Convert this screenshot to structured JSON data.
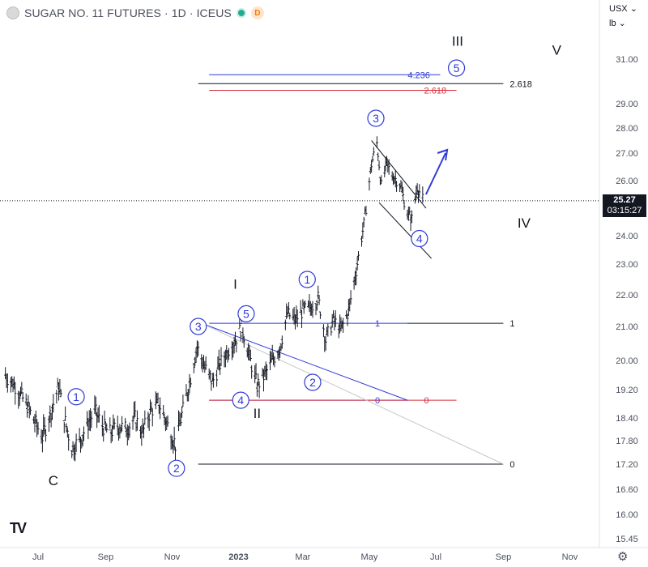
{
  "header": {
    "title": "SUGAR NO. 11 FUTURES · 1D · ICEUS",
    "badge": "D",
    "currency": "USX",
    "unit": "lb"
  },
  "last_price": {
    "value": "25.27",
    "countdown": "03:15:27"
  },
  "chart_data": {
    "type": "line",
    "title": "SUGAR NO. 11 FUTURES · 1D · ICEUS",
    "xlabel": "",
    "ylabel": "",
    "x_ticks": [
      "Jul",
      "Sep",
      "Nov",
      "2023",
      "Mar",
      "May",
      "Jul",
      "Sep",
      "Nov"
    ],
    "y_ticks": [
      "31.00",
      "29.00",
      "28.00",
      "27.00",
      "26.00",
      "24.00",
      "23.00",
      "22.00",
      "21.00",
      "20.00",
      "19.20",
      "18.40",
      "17.80",
      "17.20",
      "16.60",
      "16.00",
      "15.45"
    ],
    "grid": false,
    "series": [
      {
        "points": [
          [
            "2022-06-01",
            19.6
          ],
          [
            "2022-06-10",
            19.3
          ],
          [
            "2022-06-20",
            18.8
          ],
          [
            "2022-06-28",
            18.3
          ],
          [
            "2022-07-05",
            17.9
          ],
          [
            "2022-07-12",
            18.5
          ],
          [
            "2022-07-20",
            19.3
          ],
          [
            "2022-07-25",
            18.4
          ],
          [
            "2022-08-01",
            17.6
          ],
          [
            "2022-08-08",
            17.8
          ],
          [
            "2022-08-15",
            18.2
          ],
          [
            "2022-08-22",
            18.6
          ],
          [
            "2022-08-29",
            18.2
          ],
          [
            "2022-09-05",
            18.0
          ],
          [
            "2022-09-12",
            18.2
          ],
          [
            "2022-09-20",
            18.1
          ],
          [
            "2022-09-28",
            18.4
          ],
          [
            "2022-10-05",
            18.0
          ],
          [
            "2022-10-12",
            18.6
          ],
          [
            "2022-10-20",
            18.8
          ],
          [
            "2022-10-28",
            18.2
          ],
          [
            "2022-11-04",
            17.7
          ],
          [
            "2022-11-10",
            18.5
          ],
          [
            "2022-11-17",
            19.4
          ],
          [
            "2022-11-24",
            20.4
          ],
          [
            "2022-12-01",
            19.8
          ],
          [
            "2022-12-08",
            19.4
          ],
          [
            "2022-12-15",
            19.9
          ],
          [
            "2022-12-22",
            20.3
          ],
          [
            "2022-12-29",
            20.6
          ],
          [
            "2023-01-04",
            21.0
          ],
          [
            "2023-01-11",
            20.1
          ],
          [
            "2023-01-18",
            19.3
          ],
          [
            "2023-01-25",
            19.6
          ],
          [
            "2023-02-01",
            20.0
          ],
          [
            "2023-02-08",
            20.4
          ],
          [
            "2023-02-15",
            21.4
          ],
          [
            "2023-02-22",
            21.2
          ],
          [
            "2023-03-01",
            21.5
          ],
          [
            "2023-03-08",
            21.6
          ],
          [
            "2023-03-15",
            21.9
          ],
          [
            "2023-03-22",
            20.6
          ],
          [
            "2023-03-29",
            21.2
          ],
          [
            "2023-04-05",
            20.9
          ],
          [
            "2023-04-12",
            21.5
          ],
          [
            "2023-04-19",
            22.8
          ],
          [
            "2023-04-26",
            24.4
          ],
          [
            "2023-05-03",
            26.6
          ],
          [
            "2023-05-08",
            27.4
          ],
          [
            "2023-05-12",
            25.8
          ],
          [
            "2023-05-17",
            26.6
          ],
          [
            "2023-05-22",
            26.2
          ],
          [
            "2023-05-29",
            25.9
          ],
          [
            "2023-06-05",
            24.8
          ],
          [
            "2023-06-09",
            24.6
          ],
          [
            "2023-06-14",
            25.8
          ],
          [
            "2023-06-19",
            25.3
          ]
        ]
      }
    ],
    "annotations": {
      "wave_labels_circled": [
        {
          "text": "1",
          "date": "2022-08-05",
          "price": 19.0
        },
        {
          "text": "2",
          "date": "2022-11-05",
          "price": 17.1
        },
        {
          "text": "3",
          "date": "2022-11-25",
          "price": 21.0
        },
        {
          "text": "4",
          "date": "2023-01-03",
          "price": 18.9
        },
        {
          "text": "5",
          "date": "2023-01-08",
          "price": 21.4
        },
        {
          "text": "1",
          "date": "2023-03-05",
          "price": 22.5
        },
        {
          "text": "2",
          "date": "2023-03-10",
          "price": 19.4
        },
        {
          "text": "3",
          "date": "2023-05-07",
          "price": 28.4
        },
        {
          "text": "4",
          "date": "2023-06-16",
          "price": 23.9
        },
        {
          "text": "5",
          "date": "2023-07-20",
          "price": 30.6
        }
      ],
      "wave_labels_plain": [
        {
          "text": "C",
          "date": "2022-07-15",
          "price": 16.7
        },
        {
          "text": "I",
          "date": "2022-12-29",
          "price": 22.2
        },
        {
          "text": "II",
          "date": "2023-01-18",
          "price": 18.4
        },
        {
          "text": "III",
          "date": "2023-07-21",
          "price": 31.6
        },
        {
          "text": "IV",
          "date": "2023-09-20",
          "price": 24.3
        },
        {
          "text": "V",
          "date": "2023-10-20",
          "price": 31.2
        }
      ],
      "fib_levels": [
        {
          "label": "4.236",
          "price": 30.3,
          "color": "#2f3ad6",
          "x_from": "2022-12-05",
          "x_to": "2023-07-05"
        },
        {
          "label": "2.618",
          "price": 29.9,
          "color": "#131722",
          "x_from": "2022-11-25",
          "x_to": "2023-09-01"
        },
        {
          "label": "2.618",
          "price": 29.6,
          "color": "#d62f3a",
          "x_from": "2022-12-05",
          "x_to": "2023-07-20"
        },
        {
          "label": "1",
          "price": 21.1,
          "color": "#2f3ad6",
          "x_from": "2022-12-05",
          "x_to": "2023-06-05"
        },
        {
          "label": "1",
          "price": 21.1,
          "color": "#131722",
          "x_from": "2023-06-05",
          "x_to": "2023-09-01"
        },
        {
          "label": "0",
          "price": 18.9,
          "color": "#2f3ad6",
          "x_from": "2022-12-05",
          "x_to": "2023-06-05"
        },
        {
          "label": "0",
          "price": 18.9,
          "color": "#d62f3a",
          "x_from": "2022-12-05",
          "x_to": "2023-07-20"
        },
        {
          "label": "0",
          "price": 17.2,
          "color": "#131722",
          "x_from": "2022-11-25",
          "x_to": "2023-09-01"
        }
      ],
      "colors": {
        "wave": "#2f3ad6",
        "fib_blue": "#2f3ad6",
        "fib_red": "#d62f3a",
        "fib_black": "#131722",
        "candles": "#131722"
      }
    }
  }
}
